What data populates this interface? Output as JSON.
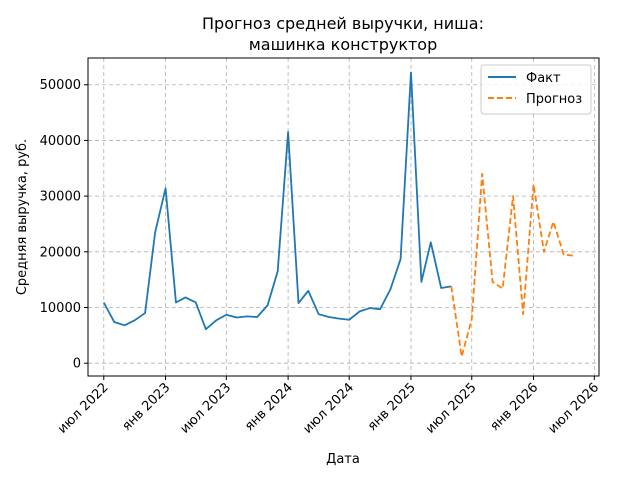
{
  "chart_data": {
    "type": "line",
    "title": [
      "Прогноз средней выручки, ниша:",
      "машинка конструктор"
    ],
    "xlabel": "Дата",
    "ylabel": "Средняя выручка, руб.",
    "x_ticks": [
      {
        "date": "2022-07-01",
        "label": "июл 2022"
      },
      {
        "date": "2023-01-01",
        "label": "янв 2023"
      },
      {
        "date": "2023-07-01",
        "label": "июл 2023"
      },
      {
        "date": "2024-01-01",
        "label": "янв 2024"
      },
      {
        "date": "2024-07-01",
        "label": "июл 2024"
      },
      {
        "date": "2025-01-01",
        "label": "янв 2025"
      },
      {
        "date": "2025-07-01",
        "label": "июл 2025"
      },
      {
        "date": "2026-01-01",
        "label": "янв 2026"
      },
      {
        "date": "2026-07-01",
        "label": "июл 2026"
      }
    ],
    "xlim": [
      "2022-05-15",
      "2026-07-15"
    ],
    "y_ticks": [
      0,
      10000,
      20000,
      30000,
      40000,
      50000
    ],
    "ylim": [
      -2300,
      54800
    ],
    "grid": true,
    "legend_position": "top-right",
    "series": [
      {
        "name": "Факт",
        "color": "#1f77b4",
        "style": "solid",
        "points": [
          [
            "2022-07-01",
            10900
          ],
          [
            "2022-08-01",
            7400
          ],
          [
            "2022-09-01",
            6800
          ],
          [
            "2022-10-01",
            7700
          ],
          [
            "2022-11-01",
            9000
          ],
          [
            "2022-12-01",
            23500
          ],
          [
            "2023-01-01",
            31400
          ],
          [
            "2023-02-01",
            10900
          ],
          [
            "2023-03-01",
            11800
          ],
          [
            "2023-04-01",
            10900
          ],
          [
            "2023-05-01",
            6100
          ],
          [
            "2023-06-01",
            7700
          ],
          [
            "2023-07-01",
            8700
          ],
          [
            "2023-08-01",
            8200
          ],
          [
            "2023-09-01",
            8400
          ],
          [
            "2023-10-01",
            8300
          ],
          [
            "2023-11-01",
            10400
          ],
          [
            "2023-12-01",
            16500
          ],
          [
            "2024-01-01",
            41500
          ],
          [
            "2024-02-01",
            10800
          ],
          [
            "2024-03-01",
            13000
          ],
          [
            "2024-04-01",
            8800
          ],
          [
            "2024-05-01",
            8300
          ],
          [
            "2024-06-01",
            8000
          ],
          [
            "2024-07-01",
            7800
          ],
          [
            "2024-08-01",
            9300
          ],
          [
            "2024-09-01",
            9900
          ],
          [
            "2024-10-01",
            9700
          ],
          [
            "2024-11-01",
            13300
          ],
          [
            "2024-12-01",
            18700
          ],
          [
            "2025-01-01",
            52200
          ],
          [
            "2025-02-01",
            14600
          ],
          [
            "2025-03-01",
            21700
          ],
          [
            "2025-04-01",
            13500
          ],
          [
            "2025-05-01",
            13800
          ]
        ]
      },
      {
        "name": "Прогноз",
        "color": "#ff7f0e",
        "style": "dashed",
        "points": [
          [
            "2025-05-01",
            13800
          ],
          [
            "2025-06-01",
            1200
          ],
          [
            "2025-07-01",
            7900
          ],
          [
            "2025-08-01",
            34000
          ],
          [
            "2025-09-01",
            14600
          ],
          [
            "2025-10-01",
            13400
          ],
          [
            "2025-11-01",
            30000
          ],
          [
            "2025-12-01",
            8800
          ],
          [
            "2026-01-01",
            32100
          ],
          [
            "2026-02-01",
            20000
          ],
          [
            "2026-03-01",
            25400
          ],
          [
            "2026-04-01",
            19500
          ],
          [
            "2026-05-01",
            19300
          ]
        ]
      }
    ]
  }
}
